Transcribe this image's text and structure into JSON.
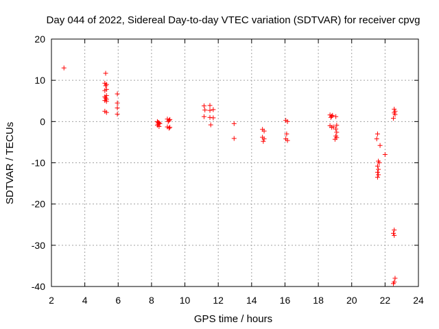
{
  "chart_data": {
    "type": "scatter",
    "title": "Day 044 of 2022, Sidereal Day-to-day VTEC variation (SDTVAR) for receiver cpvg",
    "xlabel": "GPS time / hours",
    "ylabel": "SDTVAR / TECUs",
    "xlim": [
      2,
      24
    ],
    "ylim": [
      -40,
      20
    ],
    "xticks": [
      2,
      4,
      6,
      8,
      10,
      12,
      14,
      16,
      18,
      20,
      22,
      24
    ],
    "yticks": [
      -40,
      -30,
      -20,
      -10,
      0,
      10,
      20
    ],
    "grid": true,
    "marker": "plus",
    "colors": {
      "points": "#ff0000",
      "grid": "#a0a0a0",
      "axes": "#000000"
    },
    "points": [
      [
        2.75,
        13.0
      ],
      [
        5.2,
        9.3
      ],
      [
        5.3,
        9.0
      ],
      [
        5.25,
        8.7
      ],
      [
        5.3,
        7.8
      ],
      [
        5.2,
        7.5
      ],
      [
        5.3,
        6.3
      ],
      [
        5.2,
        6.0
      ],
      [
        5.25,
        5.7
      ],
      [
        5.3,
        5.4
      ],
      [
        5.2,
        5.1
      ],
      [
        5.3,
        4.9
      ],
      [
        5.2,
        2.5
      ],
      [
        5.3,
        2.2
      ],
      [
        5.25,
        11.7
      ],
      [
        5.95,
        6.7
      ],
      [
        5.95,
        4.5
      ],
      [
        5.95,
        3.3
      ],
      [
        5.95,
        1.8
      ],
      [
        8.35,
        0.0
      ],
      [
        8.45,
        -0.3
      ],
      [
        8.4,
        -0.6
      ],
      [
        8.35,
        -0.9
      ],
      [
        8.45,
        -1.2
      ],
      [
        8.5,
        -0.5
      ],
      [
        8.4,
        -0.2
      ],
      [
        8.95,
        0.6
      ],
      [
        9.05,
        0.3
      ],
      [
        9.0,
        0.0
      ],
      [
        9.1,
        0.5
      ],
      [
        8.95,
        -1.3
      ],
      [
        9.05,
        -1.6
      ],
      [
        9.1,
        -1.4
      ],
      [
        11.15,
        3.8
      ],
      [
        11.2,
        2.8
      ],
      [
        11.15,
        1.2
      ],
      [
        11.5,
        3.9
      ],
      [
        11.5,
        2.7
      ],
      [
        11.5,
        1.0
      ],
      [
        11.7,
        2.9
      ],
      [
        11.7,
        0.9
      ],
      [
        11.55,
        -0.8
      ],
      [
        12.95,
        -0.5
      ],
      [
        12.95,
        -4.1
      ],
      [
        14.65,
        -1.9
      ],
      [
        14.75,
        -2.3
      ],
      [
        14.65,
        -3.8
      ],
      [
        14.75,
        -4.2
      ],
      [
        14.7,
        -4.8
      ],
      [
        16.05,
        0.3
      ],
      [
        16.15,
        0.0
      ],
      [
        16.1,
        -3.0
      ],
      [
        16.05,
        -4.2
      ],
      [
        16.15,
        -4.6
      ],
      [
        18.7,
        1.6
      ],
      [
        18.8,
        1.3
      ],
      [
        18.75,
        1.0
      ],
      [
        18.85,
        1.5
      ],
      [
        18.7,
        -1.0
      ],
      [
        18.8,
        -1.4
      ],
      [
        18.9,
        -1.3
      ],
      [
        19.05,
        1.2
      ],
      [
        19.1,
        -0.9
      ],
      [
        19.05,
        -1.8
      ],
      [
        19.1,
        -2.6
      ],
      [
        19.05,
        -3.5
      ],
      [
        19.1,
        -3.9
      ],
      [
        19.0,
        -4.3
      ],
      [
        21.5,
        -4.2
      ],
      [
        21.55,
        -3.0
      ],
      [
        21.7,
        -5.8
      ],
      [
        21.6,
        -9.6
      ],
      [
        21.65,
        -10.0
      ],
      [
        21.55,
        -10.8
      ],
      [
        21.6,
        -11.6
      ],
      [
        21.55,
        -12.3
      ],
      [
        21.6,
        -12.9
      ],
      [
        21.55,
        -13.5
      ],
      [
        22.0,
        -8.0
      ],
      [
        22.55,
        3.0
      ],
      [
        22.6,
        2.5
      ],
      [
        22.55,
        2.1
      ],
      [
        22.6,
        1.7
      ],
      [
        22.5,
        0.8
      ],
      [
        22.55,
        -26.3
      ],
      [
        22.5,
        -27.1
      ],
      [
        22.55,
        -27.6
      ],
      [
        22.6,
        -38.0
      ],
      [
        22.55,
        -38.9
      ],
      [
        22.5,
        -39.3
      ]
    ]
  }
}
